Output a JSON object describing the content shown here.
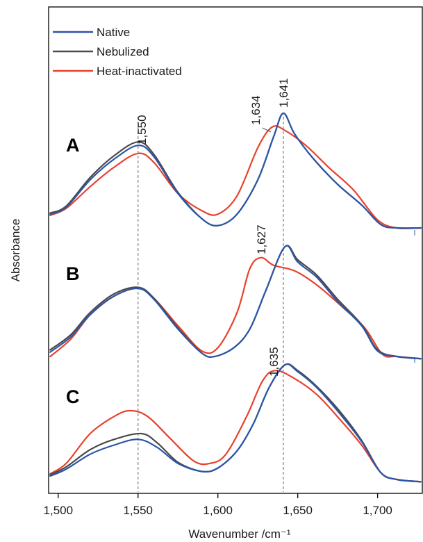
{
  "chart_data": {
    "type": "line",
    "xlabel": "Wavenumber /cm⁻¹",
    "ylabel": "Absorbance",
    "xlim": [
      1494,
      1728
    ],
    "x_ticks": [
      1500,
      1550,
      1600,
      1650,
      1700
    ],
    "x_tick_labels": [
      "1,500",
      "1,550",
      "1,600",
      "1,650",
      "1,700"
    ],
    "legend": {
      "placement": "top-left",
      "entries": [
        {
          "name": "Native",
          "color": "#2b56a8"
        },
        {
          "name": "Nebulized",
          "color": "#4a4a4a"
        },
        {
          "name": "Heat-inactivated",
          "color": "#e8412c"
        }
      ]
    },
    "reference_lines": [
      1550,
      1641
    ],
    "panels": [
      {
        "label": "A",
        "series": [
          {
            "name": "Native",
            "color": "#2b56a8",
            "points": [
              [
                1495,
                0.12
              ],
              [
                1505,
                0.18
              ],
              [
                1520,
                0.42
              ],
              [
                1535,
                0.6
              ],
              [
                1550,
                0.72
              ],
              [
                1560,
                0.62
              ],
              [
                1575,
                0.3
              ],
              [
                1590,
                0.08
              ],
              [
                1600,
                0.02
              ],
              [
                1612,
                0.12
              ],
              [
                1625,
                0.42
              ],
              [
                1635,
                0.8
              ],
              [
                1641,
                1.0
              ],
              [
                1648,
                0.82
              ],
              [
                1660,
                0.6
              ],
              [
                1675,
                0.38
              ],
              [
                1690,
                0.2
              ],
              [
                1702,
                0.03
              ],
              [
                1712,
                0.0
              ],
              [
                1727,
                0.0
              ]
            ]
          },
          {
            "name": "Nebulized",
            "color": "#4a4a4a",
            "points": [
              [
                1495,
                0.13
              ],
              [
                1505,
                0.19
              ],
              [
                1520,
                0.44
              ],
              [
                1535,
                0.63
              ],
              [
                1550,
                0.75
              ],
              [
                1560,
                0.64
              ],
              [
                1575,
                0.31
              ],
              [
                1590,
                0.08
              ],
              [
                1600,
                0.02
              ],
              [
                1612,
                0.12
              ],
              [
                1625,
                0.42
              ],
              [
                1635,
                0.8
              ],
              [
                1641,
                1.0
              ],
              [
                1648,
                0.82
              ],
              [
                1660,
                0.6
              ],
              [
                1675,
                0.38
              ],
              [
                1690,
                0.2
              ],
              [
                1702,
                0.03
              ],
              [
                1712,
                0.0
              ],
              [
                1727,
                0.0
              ]
            ]
          },
          {
            "name": "Heat-inactivated",
            "color": "#e8412c",
            "points": [
              [
                1495,
                0.11
              ],
              [
                1505,
                0.17
              ],
              [
                1520,
                0.36
              ],
              [
                1535,
                0.53
              ],
              [
                1550,
                0.65
              ],
              [
                1560,
                0.57
              ],
              [
                1575,
                0.3
              ],
              [
                1590,
                0.15
              ],
              [
                1600,
                0.12
              ],
              [
                1612,
                0.28
              ],
              [
                1625,
                0.7
              ],
              [
                1634,
                0.88
              ],
              [
                1642,
                0.85
              ],
              [
                1655,
                0.72
              ],
              [
                1670,
                0.52
              ],
              [
                1685,
                0.33
              ],
              [
                1700,
                0.07
              ],
              [
                1712,
                0.0
              ],
              [
                1727,
                0.0
              ]
            ]
          }
        ]
      },
      {
        "label": "B",
        "series": [
          {
            "name": "Native",
            "color": "#2b56a8",
            "points": [
              [
                1495,
                0.04
              ],
              [
                1508,
                0.18
              ],
              [
                1520,
                0.38
              ],
              [
                1535,
                0.55
              ],
              [
                1550,
                0.62
              ],
              [
                1560,
                0.52
              ],
              [
                1575,
                0.25
              ],
              [
                1590,
                0.03
              ],
              [
                1598,
                0.0
              ],
              [
                1610,
                0.08
              ],
              [
                1620,
                0.25
              ],
              [
                1630,
                0.6
              ],
              [
                1642,
                1.0
              ],
              [
                1650,
                0.86
              ],
              [
                1662,
                0.72
              ],
              [
                1675,
                0.5
              ],
              [
                1690,
                0.28
              ],
              [
                1700,
                0.05
              ],
              [
                1712,
                0.0
              ],
              [
                1727,
                -0.02
              ]
            ]
          },
          {
            "name": "Nebulized",
            "color": "#4a4a4a",
            "points": [
              [
                1495,
                0.06
              ],
              [
                1508,
                0.2
              ],
              [
                1520,
                0.4
              ],
              [
                1535,
                0.57
              ],
              [
                1550,
                0.63
              ],
              [
                1560,
                0.53
              ],
              [
                1575,
                0.26
              ],
              [
                1590,
                0.03
              ],
              [
                1598,
                0.0
              ],
              [
                1610,
                0.08
              ],
              [
                1620,
                0.25
              ],
              [
                1630,
                0.6
              ],
              [
                1642,
                1.0
              ],
              [
                1650,
                0.88
              ],
              [
                1662,
                0.74
              ],
              [
                1675,
                0.52
              ],
              [
                1690,
                0.29
              ],
              [
                1700,
                0.06
              ],
              [
                1712,
                0.0
              ],
              [
                1727,
                -0.02
              ]
            ]
          },
          {
            "name": "Heat-inactivated",
            "color": "#e8412c",
            "points": [
              [
                1495,
                0.0
              ],
              [
                1508,
                0.16
              ],
              [
                1520,
                0.38
              ],
              [
                1535,
                0.55
              ],
              [
                1550,
                0.62
              ],
              [
                1560,
                0.53
              ],
              [
                1575,
                0.28
              ],
              [
                1590,
                0.05
              ],
              [
                1600,
                0.08
              ],
              [
                1612,
                0.4
              ],
              [
                1620,
                0.8
              ],
              [
                1627,
                0.9
              ],
              [
                1635,
                0.83
              ],
              [
                1648,
                0.78
              ],
              [
                1662,
                0.65
              ],
              [
                1678,
                0.45
              ],
              [
                1692,
                0.26
              ],
              [
                1703,
                0.02
              ],
              [
                1712,
                0.0
              ],
              [
                1727,
                -0.02
              ]
            ]
          }
        ]
      },
      {
        "label": "C",
        "series": [
          {
            "name": "Native",
            "color": "#2b56a8",
            "points": [
              [
                1495,
                0.03
              ],
              [
                1505,
                0.09
              ],
              [
                1520,
                0.22
              ],
              [
                1535,
                0.3
              ],
              [
                1550,
                0.35
              ],
              [
                1562,
                0.28
              ],
              [
                1575,
                0.14
              ],
              [
                1590,
                0.07
              ],
              [
                1600,
                0.1
              ],
              [
                1612,
                0.25
              ],
              [
                1622,
                0.48
              ],
              [
                1632,
                0.8
              ],
              [
                1642,
                1.0
              ],
              [
                1650,
                0.94
              ],
              [
                1662,
                0.8
              ],
              [
                1676,
                0.58
              ],
              [
                1690,
                0.33
              ],
              [
                1702,
                0.06
              ],
              [
                1712,
                0.0
              ],
              [
                1727,
                -0.02
              ]
            ]
          },
          {
            "name": "Nebulized",
            "color": "#4a4a4a",
            "points": [
              [
                1495,
                0.04
              ],
              [
                1505,
                0.11
              ],
              [
                1520,
                0.26
              ],
              [
                1535,
                0.35
              ],
              [
                1552,
                0.4
              ],
              [
                1562,
                0.32
              ],
              [
                1575,
                0.15
              ],
              [
                1590,
                0.07
              ],
              [
                1600,
                0.1
              ],
              [
                1612,
                0.25
              ],
              [
                1622,
                0.48
              ],
              [
                1632,
                0.8
              ],
              [
                1642,
                1.0
              ],
              [
                1650,
                0.95
              ],
              [
                1662,
                0.81
              ],
              [
                1676,
                0.6
              ],
              [
                1690,
                0.34
              ],
              [
                1702,
                0.06
              ],
              [
                1712,
                0.0
              ],
              [
                1727,
                -0.02
              ]
            ]
          },
          {
            "name": "Heat-inactivated",
            "color": "#e8412c",
            "points": [
              [
                1495,
                0.05
              ],
              [
                1505,
                0.14
              ],
              [
                1520,
                0.4
              ],
              [
                1535,
                0.55
              ],
              [
                1545,
                0.6
              ],
              [
                1556,
                0.55
              ],
              [
                1570,
                0.36
              ],
              [
                1585,
                0.16
              ],
              [
                1595,
                0.14
              ],
              [
                1605,
                0.22
              ],
              [
                1618,
                0.55
              ],
              [
                1628,
                0.86
              ],
              [
                1636,
                0.95
              ],
              [
                1648,
                0.88
              ],
              [
                1662,
                0.74
              ],
              [
                1676,
                0.53
              ],
              [
                1690,
                0.3
              ],
              [
                1702,
                0.06
              ],
              [
                1712,
                0.0
              ],
              [
                1727,
                -0.02
              ]
            ]
          }
        ]
      }
    ],
    "annotations": [
      {
        "panel": "A",
        "x": 1550,
        "text": "1,550"
      },
      {
        "panel": "A",
        "x": 1634,
        "text": "1,634"
      },
      {
        "panel": "A",
        "x": 1641,
        "text": "1,641"
      },
      {
        "panel": "B",
        "x": 1627,
        "text": "1,627"
      },
      {
        "panel": "C",
        "x": 1635,
        "text": "1,635"
      }
    ]
  }
}
